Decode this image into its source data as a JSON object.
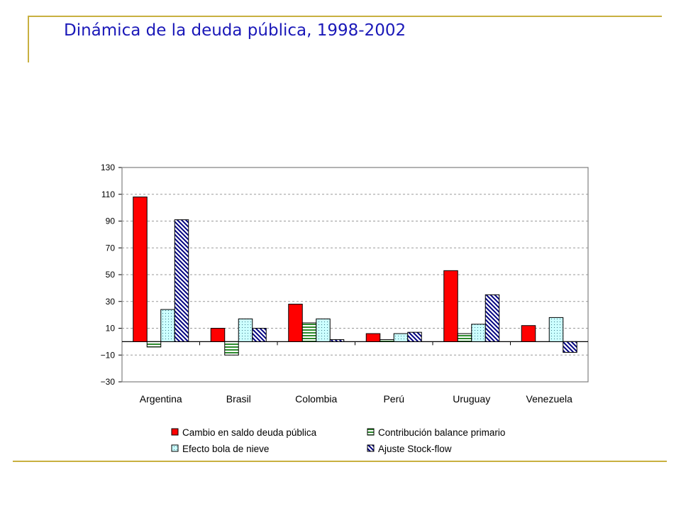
{
  "slide": {
    "title": "Dinámica de la deuda pública, 1998-2002"
  },
  "chart_data": {
    "type": "bar",
    "title": "",
    "xlabel": "",
    "ylabel": "",
    "ylim": [
      -30,
      130
    ],
    "yticks": [
      130,
      110,
      90,
      70,
      50,
      30,
      10,
      -10,
      -30
    ],
    "grid": true,
    "legend_position": "bottom",
    "categories": [
      "Argentina",
      "Brasil",
      "Colombia",
      "Perú",
      "Uruguay",
      "Venezuela"
    ],
    "series": [
      {
        "name": "Cambio en saldo deuda pública",
        "values": [
          108,
          10,
          28,
          6,
          53,
          12
        ],
        "color": "#ff0000",
        "pattern": "solid"
      },
      {
        "name": "Contribución balance primario",
        "values": [
          -4,
          -10,
          14,
          1.5,
          6,
          0
        ],
        "color": "#66cc66",
        "pattern": "horizontal-stripes"
      },
      {
        "name": "Efecto bola de nieve",
        "values": [
          24,
          17,
          17,
          6,
          13,
          18
        ],
        "color": "#ccffff",
        "pattern": "dots"
      },
      {
        "name": "Ajuste Stock-flow",
        "values": [
          91,
          10,
          1.5,
          7,
          35,
          -8
        ],
        "color": "#000080",
        "pattern": "diagonal-stripes"
      }
    ]
  }
}
